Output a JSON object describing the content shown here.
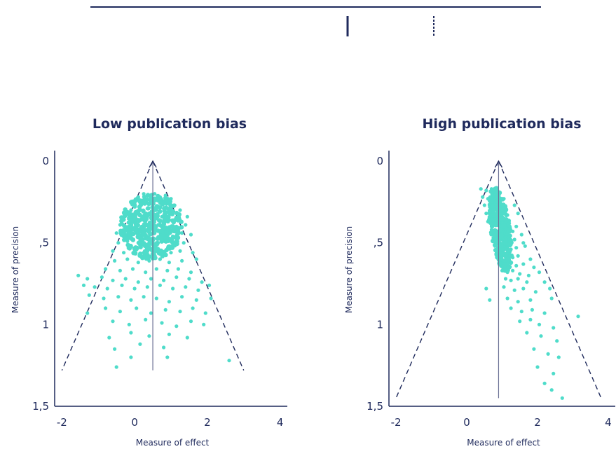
{
  "colors": {
    "axis": "#1f2a5c",
    "points": "#4fdcca",
    "text": "#1f2a5c"
  },
  "chart_data": [
    {
      "type": "scatter",
      "title": "Low publication bias",
      "xlabel": "Measure of effect",
      "ylabel": "Measure of precision",
      "xlim": [
        -2.2,
        4.2
      ],
      "ylim": [
        0,
        1.5
      ],
      "y_inverted": true,
      "x_ticks": [
        "-2",
        "0",
        "2",
        "4"
      ],
      "y_ticks": [
        "0",
        ",5",
        "1",
        "1,5"
      ],
      "x_tick_values": [
        -2,
        0,
        2,
        4
      ],
      "y_tick_values": [
        0,
        0.5,
        1,
        1.5
      ],
      "funnel": {
        "apex": [
          0.5,
          0.0
        ],
        "left_base": [
          -2.0,
          1.28
        ],
        "right_base": [
          3.0,
          1.28
        ]
      },
      "center_line": {
        "x": 0.5,
        "y_from": 0.0,
        "y_to": 1.28
      },
      "points": [
        [
          0.1,
          0.22
        ],
        [
          0.25,
          0.2
        ],
        [
          0.4,
          0.21
        ],
        [
          0.55,
          0.2
        ],
        [
          0.7,
          0.22
        ],
        [
          0.85,
          0.21
        ],
        [
          1.0,
          0.23
        ],
        [
          0.0,
          0.26
        ],
        [
          0.2,
          0.25
        ],
        [
          0.45,
          0.26
        ],
        [
          0.65,
          0.24
        ],
        [
          0.9,
          0.26
        ],
        [
          1.1,
          0.27
        ],
        [
          -0.1,
          0.3
        ],
        [
          0.15,
          0.3
        ],
        [
          0.35,
          0.29
        ],
        [
          0.6,
          0.3
        ],
        [
          0.8,
          0.29
        ],
        [
          1.05,
          0.31
        ],
        [
          1.25,
          0.3
        ],
        [
          -0.3,
          0.34
        ],
        [
          -0.05,
          0.35
        ],
        [
          0.25,
          0.34
        ],
        [
          0.5,
          0.35
        ],
        [
          0.75,
          0.34
        ],
        [
          0.95,
          0.36
        ],
        [
          1.2,
          0.35
        ],
        [
          1.45,
          0.34
        ],
        [
          -0.4,
          0.39
        ],
        [
          -0.15,
          0.4
        ],
        [
          0.1,
          0.39
        ],
        [
          0.4,
          0.4
        ],
        [
          0.65,
          0.39
        ],
        [
          0.9,
          0.41
        ],
        [
          1.15,
          0.4
        ],
        [
          1.4,
          0.39
        ],
        [
          -0.5,
          0.44
        ],
        [
          -0.25,
          0.45
        ],
        [
          0.05,
          0.44
        ],
        [
          0.3,
          0.45
        ],
        [
          0.55,
          0.44
        ],
        [
          0.8,
          0.45
        ],
        [
          1.05,
          0.46
        ],
        [
          1.3,
          0.44
        ],
        [
          1.55,
          0.45
        ],
        [
          -0.45,
          0.5
        ],
        [
          -0.2,
          0.49
        ],
        [
          0.1,
          0.5
        ],
        [
          0.35,
          0.51
        ],
        [
          0.6,
          0.5
        ],
        [
          0.85,
          0.49
        ],
        [
          1.1,
          0.51
        ],
        [
          1.35,
          0.5
        ],
        [
          -0.6,
          0.55
        ],
        [
          -0.3,
          0.56
        ],
        [
          0.0,
          0.55
        ],
        [
          0.25,
          0.56
        ],
        [
          0.5,
          0.55
        ],
        [
          0.75,
          0.57
        ],
        [
          1.0,
          0.56
        ],
        [
          1.25,
          0.55
        ],
        [
          1.6,
          0.56
        ],
        [
          -0.55,
          0.61
        ],
        [
          -0.2,
          0.6
        ],
        [
          0.1,
          0.62
        ],
        [
          0.4,
          0.61
        ],
        [
          0.7,
          0.6
        ],
        [
          0.95,
          0.62
        ],
        [
          1.3,
          0.61
        ],
        [
          1.7,
          0.6
        ],
        [
          -0.8,
          0.66
        ],
        [
          -0.4,
          0.67
        ],
        [
          -0.05,
          0.66
        ],
        [
          0.3,
          0.68
        ],
        [
          0.6,
          0.66
        ],
        [
          0.9,
          0.67
        ],
        [
          1.2,
          0.66
        ],
        [
          1.55,
          0.68
        ],
        [
          -1.55,
          0.7
        ],
        [
          -1.3,
          0.72
        ],
        [
          -0.9,
          0.71
        ],
        [
          -0.6,
          0.73
        ],
        [
          -0.25,
          0.72
        ],
        [
          0.1,
          0.74
        ],
        [
          0.45,
          0.72
        ],
        [
          0.8,
          0.73
        ],
        [
          1.15,
          0.71
        ],
        [
          1.5,
          0.72
        ],
        [
          1.85,
          0.74
        ],
        [
          -1.4,
          0.76
        ],
        [
          -1.1,
          0.77
        ],
        [
          -0.75,
          0.78
        ],
        [
          -0.35,
          0.76
        ],
        [
          0.0,
          0.78
        ],
        [
          0.35,
          0.77
        ],
        [
          0.7,
          0.76
        ],
        [
          1.05,
          0.78
        ],
        [
          1.4,
          0.77
        ],
        [
          1.75,
          0.79
        ],
        [
          2.05,
          0.76
        ],
        [
          -1.25,
          0.82
        ],
        [
          -0.85,
          0.84
        ],
        [
          -0.45,
          0.83
        ],
        [
          -0.1,
          0.85
        ],
        [
          0.25,
          0.83
        ],
        [
          0.6,
          0.84
        ],
        [
          0.95,
          0.86
        ],
        [
          1.3,
          0.83
        ],
        [
          1.7,
          0.85
        ],
        [
          2.1,
          0.84
        ],
        [
          -1.3,
          0.93
        ],
        [
          -0.8,
          0.9
        ],
        [
          -0.4,
          0.92
        ],
        [
          0.05,
          0.9
        ],
        [
          0.45,
          0.93
        ],
        [
          0.85,
          0.91
        ],
        [
          1.25,
          0.92
        ],
        [
          1.6,
          0.9
        ],
        [
          1.95,
          0.93
        ],
        [
          -0.6,
          0.98
        ],
        [
          -0.15,
          1.0
        ],
        [
          0.3,
          0.97
        ],
        [
          0.75,
          0.99
        ],
        [
          1.15,
          1.01
        ],
        [
          1.55,
          0.98
        ],
        [
          1.9,
          1.0
        ],
        [
          -0.7,
          1.08
        ],
        [
          -0.1,
          1.05
        ],
        [
          0.4,
          1.07
        ],
        [
          0.95,
          1.06
        ],
        [
          1.45,
          1.08
        ],
        [
          -0.55,
          1.15
        ],
        [
          0.15,
          1.12
        ],
        [
          0.8,
          1.14
        ],
        [
          0.9,
          1.2
        ],
        [
          -0.1,
          1.2
        ],
        [
          2.6,
          1.22
        ],
        [
          -0.5,
          1.26
        ]
      ]
    },
    {
      "type": "scatter",
      "title": "High publication bias",
      "xlabel": "Measure of effect",
      "ylabel": "Measure of precision",
      "xlim": [
        -2.2,
        4.2
      ],
      "ylim": [
        0,
        1.5
      ],
      "y_inverted": true,
      "x_ticks": [
        "-2",
        "0",
        "2",
        "4"
      ],
      "y_ticks": [
        "0",
        ",5",
        "1",
        "1,5"
      ],
      "x_tick_values": [
        -2,
        0,
        2,
        4
      ],
      "y_tick_values": [
        0,
        0.5,
        1,
        1.5
      ],
      "funnel": {
        "apex": [
          0.9,
          0.0
        ],
        "left_base": [
          -2.0,
          1.45
        ],
        "right_base": [
          3.8,
          1.45
        ]
      },
      "center_line": {
        "x": 0.9,
        "y_from": 0.0,
        "y_to": 1.45
      },
      "points": [
        [
          0.4,
          0.17
        ],
        [
          0.55,
          0.18
        ],
        [
          0.7,
          0.17
        ],
        [
          0.85,
          0.19
        ],
        [
          0.45,
          0.22
        ],
        [
          0.6,
          0.23
        ],
        [
          0.75,
          0.22
        ],
        [
          0.9,
          0.24
        ],
        [
          1.05,
          0.23
        ],
        [
          0.5,
          0.27
        ],
        [
          0.65,
          0.28
        ],
        [
          0.8,
          0.27
        ],
        [
          0.95,
          0.29
        ],
        [
          1.1,
          0.28
        ],
        [
          1.35,
          0.27
        ],
        [
          0.55,
          0.32
        ],
        [
          0.7,
          0.33
        ],
        [
          0.85,
          0.32
        ],
        [
          1.0,
          0.34
        ],
        [
          1.15,
          0.33
        ],
        [
          1.45,
          0.32
        ],
        [
          0.6,
          0.37
        ],
        [
          0.75,
          0.38
        ],
        [
          0.9,
          0.37
        ],
        [
          1.05,
          0.39
        ],
        [
          1.2,
          0.38
        ],
        [
          1.4,
          0.4
        ],
        [
          0.7,
          0.42
        ],
        [
          0.85,
          0.43
        ],
        [
          1.0,
          0.42
        ],
        [
          1.15,
          0.44
        ],
        [
          1.3,
          0.43
        ],
        [
          1.55,
          0.45
        ],
        [
          0.75,
          0.47
        ],
        [
          0.9,
          0.48
        ],
        [
          1.05,
          0.47
        ],
        [
          1.2,
          0.49
        ],
        [
          1.35,
          0.48
        ],
        [
          1.6,
          0.5
        ],
        [
          0.8,
          0.52
        ],
        [
          0.95,
          0.53
        ],
        [
          1.1,
          0.52
        ],
        [
          1.25,
          0.54
        ],
        [
          1.4,
          0.53
        ],
        [
          1.65,
          0.52
        ],
        [
          0.85,
          0.57
        ],
        [
          1.0,
          0.58
        ],
        [
          1.15,
          0.57
        ],
        [
          1.3,
          0.59
        ],
        [
          1.45,
          0.58
        ],
        [
          1.8,
          0.6
        ],
        [
          0.95,
          0.62
        ],
        [
          1.1,
          0.63
        ],
        [
          1.25,
          0.62
        ],
        [
          1.4,
          0.64
        ],
        [
          1.6,
          0.63
        ],
        [
          1.9,
          0.65
        ],
        [
          1.0,
          0.67
        ],
        [
          1.15,
          0.68
        ],
        [
          1.3,
          0.67
        ],
        [
          1.5,
          0.69
        ],
        [
          1.75,
          0.7
        ],
        [
          2.05,
          0.68
        ],
        [
          1.1,
          0.72
        ],
        [
          1.25,
          0.73
        ],
        [
          1.45,
          0.72
        ],
        [
          1.7,
          0.74
        ],
        [
          2.2,
          0.74
        ],
        [
          0.55,
          0.78
        ],
        [
          1.05,
          0.77
        ],
        [
          1.35,
          0.79
        ],
        [
          1.6,
          0.78
        ],
        [
          1.95,
          0.8
        ],
        [
          2.35,
          0.78
        ],
        [
          0.65,
          0.85
        ],
        [
          1.15,
          0.84
        ],
        [
          1.45,
          0.86
        ],
        [
          1.8,
          0.85
        ],
        [
          2.4,
          0.84
        ],
        [
          1.25,
          0.9
        ],
        [
          1.55,
          0.92
        ],
        [
          1.85,
          0.91
        ],
        [
          2.2,
          0.93
        ],
        [
          3.15,
          0.95
        ],
        [
          1.5,
          0.98
        ],
        [
          1.8,
          0.97
        ],
        [
          2.05,
          1.0
        ],
        [
          2.45,
          1.02
        ],
        [
          1.7,
          1.05
        ],
        [
          2.1,
          1.07
        ],
        [
          2.55,
          1.1
        ],
        [
          1.9,
          1.15
        ],
        [
          2.3,
          1.18
        ],
        [
          2.6,
          1.2
        ],
        [
          2.0,
          1.26
        ],
        [
          2.45,
          1.3
        ],
        [
          2.2,
          1.36
        ],
        [
          2.4,
          1.4
        ],
        [
          2.7,
          1.45
        ]
      ]
    }
  ],
  "header": {
    "decor": "top rule with two short vertical marks"
  }
}
